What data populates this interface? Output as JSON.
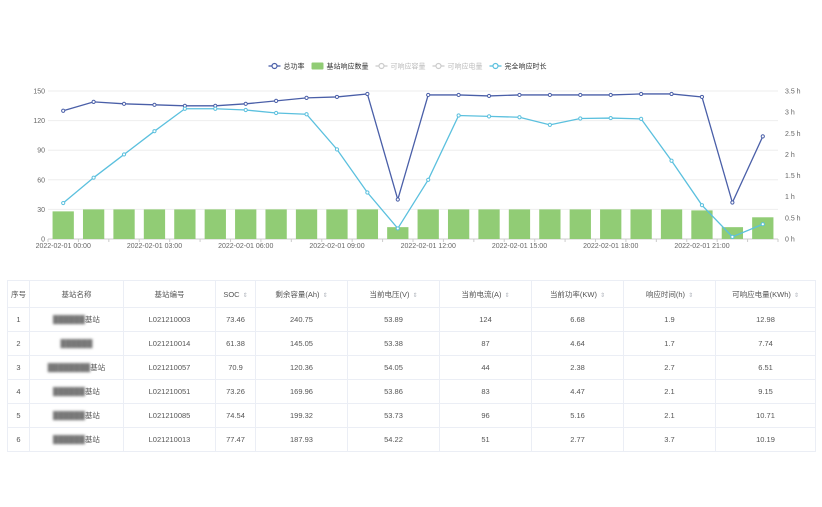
{
  "chart_data": {
    "type": "bar",
    "legend": [
      {
        "name": "总功率",
        "color": "#4a5fa8",
        "symbol": "line-circle",
        "active": true
      },
      {
        "name": "基站响应数量",
        "color": "#91cc75",
        "symbol": "rect",
        "active": true
      },
      {
        "name": "可响应容量",
        "color": "#cccccc",
        "symbol": "line-circle",
        "active": false
      },
      {
        "name": "可响应电量",
        "color": "#cccccc",
        "symbol": "line-circle",
        "active": false
      },
      {
        "name": "完全响应时长",
        "color": "#5bc0de",
        "symbol": "line-circle",
        "active": true
      }
    ],
    "x": [
      "00:00",
      "01:00",
      "02:00",
      "03:00",
      "04:00",
      "05:00",
      "06:00",
      "07:00",
      "08:00",
      "09:00",
      "10:00",
      "11:00",
      "12:00",
      "13:00",
      "14:00",
      "15:00",
      "16:00",
      "17:00",
      "18:00",
      "19:00",
      "20:00",
      "21:00",
      "22:00",
      "23:00"
    ],
    "x_tick_labels": [
      "2022-02-01 00:00",
      "2022-02-01 03:00",
      "2022-02-01 06:00",
      "2022-02-01 09:00",
      "2022-02-01 12:00",
      "2022-02-01 15:00",
      "2022-02-01 18:00",
      "2022-02-01 21:00"
    ],
    "y_left_ticks": [
      "0",
      "30",
      "60",
      "90",
      "120",
      "150"
    ],
    "y_right_ticks": [
      "0 h",
      "0.5 h",
      "1 h",
      "1.5 h",
      "2 h",
      "2.5 h",
      "3 h",
      "3.5 h"
    ],
    "ylim_left": [
      0,
      150
    ],
    "ylim_right": [
      0,
      3.5
    ],
    "series": [
      {
        "name": "总功率",
        "axis": "left",
        "kind": "line",
        "color": "#4a5fa8",
        "values": [
          130,
          139,
          137,
          136,
          135,
          135,
          137,
          140,
          143,
          144,
          147,
          40,
          146,
          146,
          145,
          146,
          146,
          146,
          146,
          147,
          147,
          144,
          37,
          104
        ]
      },
      {
        "name": "基站响应数量",
        "axis": "left",
        "kind": "bar",
        "color": "#91cc75",
        "values": [
          28,
          30,
          30,
          30,
          30,
          30,
          30,
          30,
          30,
          30,
          30,
          12,
          30,
          30,
          30,
          30,
          30,
          30,
          30,
          30,
          30,
          29,
          12,
          22
        ]
      },
      {
        "name": "完全响应时长",
        "axis": "right",
        "kind": "line",
        "color": "#5bc0de",
        "values": [
          0.85,
          1.45,
          2.0,
          2.55,
          3.08,
          3.08,
          3.05,
          2.98,
          2.95,
          2.12,
          1.1,
          0.25,
          1.4,
          2.92,
          2.9,
          2.88,
          2.7,
          2.85,
          2.86,
          2.84,
          1.85,
          0.8,
          0.05,
          0.35
        ]
      }
    ],
    "grid": true,
    "legend_position": "top-center"
  },
  "table": {
    "columns": [
      {
        "label": "序号",
        "sortable": false
      },
      {
        "label": "基站名称",
        "sortable": false
      },
      {
        "label": "基站编号",
        "sortable": false
      },
      {
        "label": "SOC",
        "sortable": true
      },
      {
        "label": "剩余容量(Ah)",
        "sortable": true
      },
      {
        "label": "当前电压(V)",
        "sortable": true
      },
      {
        "label": "当前电流(A)",
        "sortable": true
      },
      {
        "label": "当前功率(KW)",
        "sortable": true
      },
      {
        "label": "响应时间(h)",
        "sortable": true
      },
      {
        "label": "可响应电量(KWh)",
        "sortable": true
      }
    ],
    "sort_icon": "⇕",
    "rows": [
      [
        "1",
        "██████基站",
        "L021210003",
        "73.46",
        "240.75",
        "53.89",
        "124",
        "6.68",
        "1.9",
        "12.98"
      ],
      [
        "2",
        "██████",
        "L021210014",
        "61.38",
        "145.05",
        "53.38",
        "87",
        "4.64",
        "1.7",
        "7.74"
      ],
      [
        "3",
        "████████基站",
        "L021210057",
        "70.9",
        "120.36",
        "54.05",
        "44",
        "2.38",
        "2.7",
        "6.51"
      ],
      [
        "4",
        "██████基站",
        "L021210051",
        "73.26",
        "169.96",
        "53.86",
        "83",
        "4.47",
        "2.1",
        "9.15"
      ],
      [
        "5",
        "██████基站",
        "L021210085",
        "74.54",
        "199.32",
        "53.73",
        "96",
        "5.16",
        "2.1",
        "10.71"
      ],
      [
        "6",
        "██████基站",
        "L021210013",
        "77.47",
        "187.93",
        "54.22",
        "51",
        "2.77",
        "3.7",
        "10.19"
      ]
    ]
  }
}
